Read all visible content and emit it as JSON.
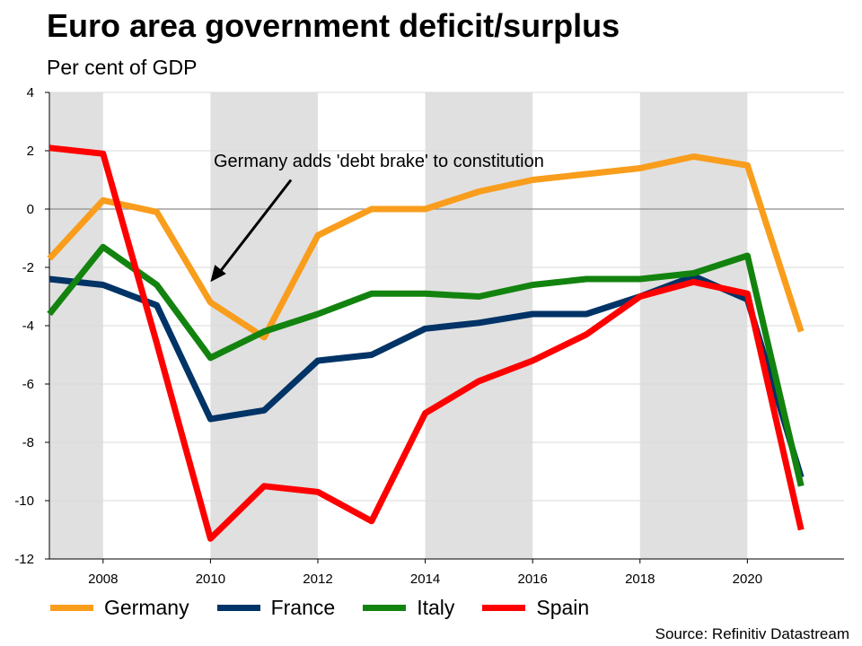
{
  "chart_data": {
    "type": "line",
    "title": "Euro area government deficit/surplus",
    "subtitle": "Per cent of GDP",
    "x": [
      2007,
      2008,
      2009,
      2010,
      2011,
      2012,
      2013,
      2014,
      2015,
      2016,
      2017,
      2018,
      2019,
      2020,
      2021
    ],
    "xlim": [
      2007,
      2021.8
    ],
    "ylim": [
      -12,
      4
    ],
    "x_ticks": [
      2008,
      2010,
      2012,
      2014,
      2016,
      2018,
      2020
    ],
    "y_ticks": [
      4,
      2,
      0,
      -2,
      -4,
      -6,
      -8,
      -10,
      -12
    ],
    "grid": true,
    "shaded_bands": [
      [
        2007,
        2008
      ],
      [
        2010,
        2012
      ],
      [
        2014,
        2016
      ],
      [
        2018,
        2020
      ]
    ],
    "band_color": "#e0e0e0",
    "series": [
      {
        "name": "Germany",
        "color": "#f99d1c",
        "values": [
          -1.7,
          0.3,
          -0.1,
          -3.2,
          -4.4,
          -0.9,
          0.0,
          0.0,
          0.6,
          1.0,
          1.2,
          1.4,
          1.8,
          1.5,
          -4.2
        ]
      },
      {
        "name": "France",
        "color": "#003366",
        "values": [
          -2.4,
          -2.6,
          -3.3,
          -7.2,
          -6.9,
          -5.2,
          -5.0,
          -4.1,
          -3.9,
          -3.6,
          -3.6,
          -3.0,
          -2.3,
          -3.1,
          -9.2
        ]
      },
      {
        "name": "Italy",
        "color": "#13830f",
        "values": [
          -3.6,
          -1.3,
          -2.6,
          -5.1,
          -4.2,
          -3.6,
          -2.9,
          -2.9,
          -3.0,
          -2.6,
          -2.4,
          -2.4,
          -2.2,
          -1.6,
          -9.5
        ]
      },
      {
        "name": "Spain",
        "color": "#ff0000",
        "values": [
          2.1,
          1.9,
          -4.6,
          -11.3,
          -9.5,
          -9.7,
          -10.7,
          -7.0,
          -5.9,
          -5.2,
          -4.3,
          -3.0,
          -2.5,
          -2.9,
          -11.0
        ]
      }
    ],
    "annotation": {
      "text": "Germany adds 'debt brake' to constitution",
      "arrow_from": [
        2011.5,
        1.0
      ],
      "arrow_to": [
        2010.0,
        -2.5
      ]
    },
    "legend_placement": "bottom",
    "source": "Source: Refinitiv Datastream"
  }
}
